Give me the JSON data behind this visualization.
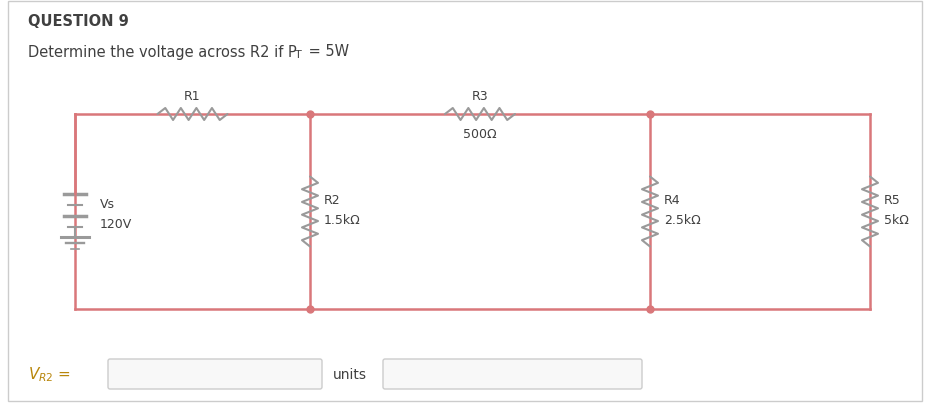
{
  "title": "QUESTION 9",
  "subtitle_main": "Determine the voltage across R2 if P",
  "subtitle_sub": "T",
  "subtitle_end": " = 5W",
  "bg_color": "#ffffff",
  "circuit_color": "#d9777a",
  "text_color": "#404040",
  "component_color": "#9a9a9a",
  "vs_label": "Vs",
  "vs_value": "120V",
  "r1_label": "R1",
  "r2_label": "R2",
  "r2_value": "1.5kΩ",
  "r3_label": "R3",
  "r3_value": "500Ω",
  "r4_label": "R4",
  "r4_value": "2.5kΩ",
  "r5_label": "R5",
  "r5_value": "5kΩ",
  "outer_border_color": "#cccccc",
  "box_border_color": "#cccccc",
  "answer_text_color": "#b8860b"
}
